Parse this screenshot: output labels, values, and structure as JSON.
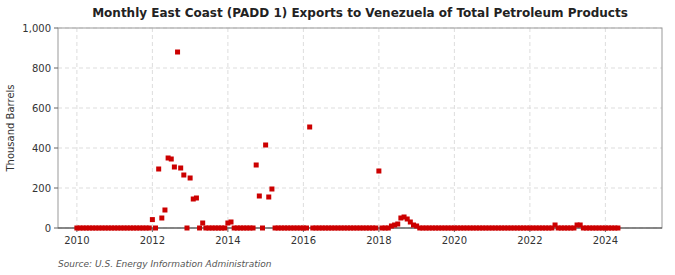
{
  "chart_data": {
    "type": "scatter",
    "title": "Monthly East Coast (PADD 1) Exports to Venezuela of Total Petroleum Products",
    "ylabel": "Thousand Barrels",
    "annotations": [
      "Source: U.S. Energy Information Administration"
    ],
    "color": "#cc0000",
    "marker": "square",
    "grid": true,
    "xlim": [
      2009.5,
      2025.5
    ],
    "ylim": [
      0,
      1000
    ],
    "xticks": [
      2010,
      2012,
      2014,
      2016,
      2018,
      2020,
      2022,
      2024
    ],
    "yticks": [
      0,
      200,
      400,
      600,
      800,
      {
        "value": 1000,
        "label": "1,000"
      }
    ],
    "x": [
      2010.0,
      2010.083,
      2010.167,
      2010.25,
      2010.333,
      2010.417,
      2010.5,
      2010.583,
      2010.667,
      2010.75,
      2010.833,
      2010.917,
      2011.0,
      2011.083,
      2011.167,
      2011.25,
      2011.333,
      2011.417,
      2011.5,
      2011.583,
      2011.667,
      2011.75,
      2011.833,
      2011.917,
      2012.0,
      2012.083,
      2012.167,
      2012.25,
      2012.333,
      2012.417,
      2012.5,
      2012.583,
      2012.667,
      2012.75,
      2012.833,
      2012.917,
      2013.0,
      2013.083,
      2013.167,
      2013.25,
      2013.333,
      2013.417,
      2013.5,
      2013.583,
      2013.667,
      2013.75,
      2013.833,
      2013.917,
      2014.0,
      2014.083,
      2014.167,
      2014.25,
      2014.333,
      2014.417,
      2014.5,
      2014.583,
      2014.667,
      2014.75,
      2014.833,
      2014.917,
      2015.0,
      2015.083,
      2015.167,
      2015.25,
      2015.333,
      2015.417,
      2015.5,
      2015.583,
      2015.667,
      2015.75,
      2015.833,
      2015.917,
      2016.0,
      2016.083,
      2016.167,
      2016.25,
      2016.333,
      2016.417,
      2016.5,
      2016.583,
      2016.667,
      2016.75,
      2016.833,
      2016.917,
      2017.0,
      2017.083,
      2017.167,
      2017.25,
      2017.333,
      2017.417,
      2017.5,
      2017.583,
      2017.667,
      2017.75,
      2017.833,
      2017.917,
      2018.0,
      2018.083,
      2018.167,
      2018.25,
      2018.333,
      2018.417,
      2018.5,
      2018.583,
      2018.667,
      2018.75,
      2018.833,
      2018.917,
      2019.0,
      2019.083,
      2019.167,
      2019.25,
      2019.333,
      2019.417,
      2019.5,
      2019.583,
      2019.667,
      2019.75,
      2019.833,
      2019.917,
      2020.0,
      2020.083,
      2020.167,
      2020.25,
      2020.333,
      2020.417,
      2020.5,
      2020.583,
      2020.667,
      2020.75,
      2020.833,
      2020.917,
      2021.0,
      2021.083,
      2021.167,
      2021.25,
      2021.333,
      2021.417,
      2021.5,
      2021.583,
      2021.667,
      2021.75,
      2021.833,
      2021.917,
      2022.0,
      2022.083,
      2022.167,
      2022.25,
      2022.333,
      2022.417,
      2022.5,
      2022.583,
      2022.667,
      2022.75,
      2022.833,
      2022.917,
      2023.0,
      2023.083,
      2023.167,
      2023.25,
      2023.333,
      2023.417,
      2023.5,
      2023.583,
      2023.667,
      2023.75,
      2023.833,
      2023.917,
      2024.0,
      2024.083,
      2024.167,
      2024.25,
      2024.333
    ],
    "values": [
      0,
      0,
      0,
      0,
      0,
      0,
      0,
      0,
      0,
      0,
      0,
      0,
      0,
      0,
      0,
      0,
      0,
      0,
      0,
      0,
      0,
      0,
      0,
      0,
      42,
      0,
      295,
      50,
      90,
      350,
      345,
      305,
      880,
      300,
      265,
      0,
      250,
      145,
      150,
      0,
      25,
      0,
      0,
      0,
      0,
      0,
      0,
      0,
      25,
      30,
      0,
      0,
      0,
      0,
      0,
      0,
      0,
      315,
      160,
      0,
      415,
      155,
      195,
      0,
      0,
      0,
      0,
      0,
      0,
      0,
      0,
      0,
      0,
      0,
      505,
      0,
      0,
      0,
      0,
      0,
      0,
      0,
      0,
      0,
      0,
      0,
      0,
      0,
      0,
      0,
      0,
      0,
      0,
      0,
      0,
      0,
      285,
      0,
      0,
      0,
      10,
      15,
      20,
      50,
      55,
      45,
      30,
      15,
      10,
      0,
      0,
      0,
      0,
      0,
      0,
      0,
      0,
      0,
      0,
      0,
      0,
      0,
      0,
      0,
      0,
      0,
      0,
      0,
      0,
      0,
      0,
      0,
      0,
      0,
      0,
      0,
      0,
      0,
      0,
      0,
      0,
      0,
      0,
      0,
      0,
      0,
      0,
      0,
      0,
      0,
      0,
      0,
      15,
      0,
      0,
      0,
      0,
      0,
      0,
      15,
      15,
      0,
      0,
      0,
      0,
      0,
      0,
      0,
      0,
      0,
      0,
      0,
      0
    ]
  }
}
